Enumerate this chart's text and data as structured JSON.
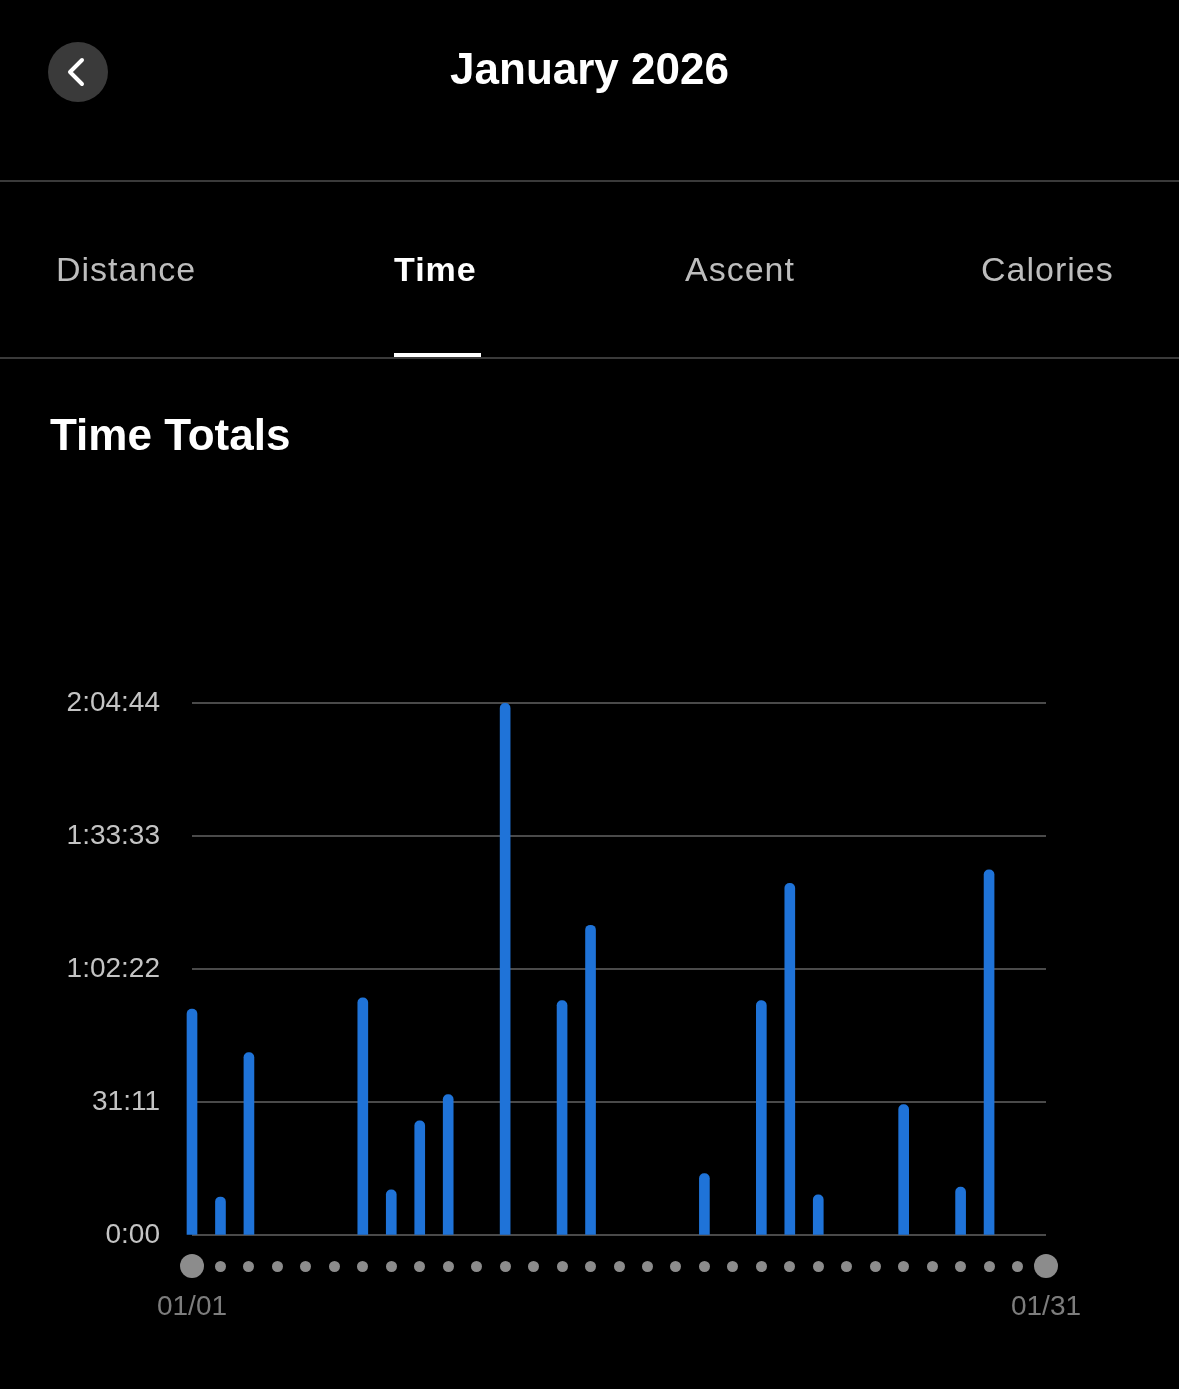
{
  "chart_data": {
    "type": "bar",
    "title": "Time Totals",
    "subtitle": "January 2026",
    "annotations": [
      "Distance",
      "Time",
      "Ascent",
      "Calories"
    ],
    "categories": [
      "01/01",
      null,
      null,
      null,
      null,
      null,
      null,
      null,
      null,
      null,
      null,
      null,
      null,
      null,
      null,
      null,
      null,
      null,
      null,
      null,
      null,
      null,
      null,
      null,
      null,
      null,
      null,
      null,
      null,
      null,
      "01/31"
    ],
    "values": [
      3180,
      540,
      2570,
      null,
      null,
      null,
      3340,
      640,
      1610,
      1980,
      null,
      7480,
      null,
      3300,
      4360,
      null,
      null,
      null,
      870,
      null,
      3300,
      4950,
      570,
      null,
      null,
      1840,
      null,
      680,
      5140,
      null,
      null
    ],
    "color": "#1f73d8",
    "ylim": [
      0,
      7484
    ],
    "yticks": [
      {
        "value": 0,
        "label": "0:00"
      },
      {
        "value": 1871,
        "label": "31:11"
      },
      {
        "value": 3742,
        "label": "1:02:22"
      },
      {
        "value": 5613,
        "label": "1:33:33"
      },
      {
        "value": 7484,
        "label": "2:04:44"
      }
    ],
    "grid": "y"
  }
}
